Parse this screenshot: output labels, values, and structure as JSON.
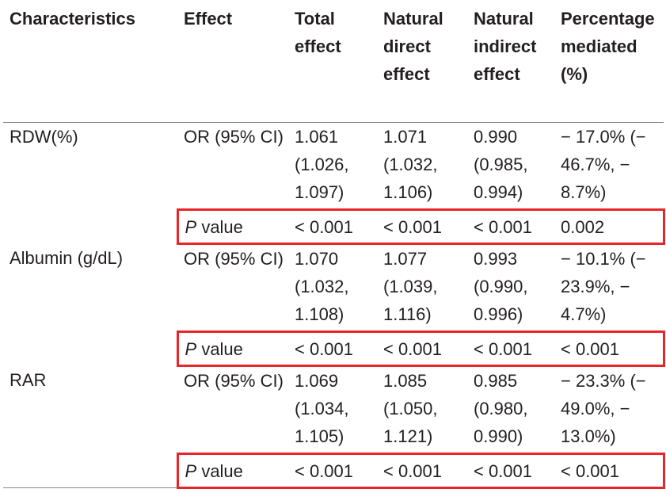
{
  "table": {
    "header": [
      "Characteristics",
      "Effect",
      "Total effect",
      "Natural direct effect",
      "Natural indirect effect",
      "Percent­age me­diated (%)"
    ],
    "rows": [
      {
        "label": "RDW(%)",
        "effect": "OR (95% CI)",
        "cells": [
          "1.061 (1.026, 1.097)",
          "1.071 (1.032, 1.106)",
          "0.990 (0.985, 0.994)",
          "− 17.0% (− 46.7%, − 8.7%)"
        ],
        "p_label": {
          "italic": "P",
          "text": "value"
        },
        "p_cells": [
          "< 0.001",
          "< 0.001",
          "< 0.001",
          "0.002"
        ]
      },
      {
        "label": "Albumin (g/dL)",
        "effect": "OR (95% CI)",
        "cells": [
          "1.070 (1.032, 1.108)",
          "1.077 (1.039, 1.116)",
          "0.993 (0.990, 0.996)",
          "− 10.1% (− 23.9%, − 4.7%)"
        ],
        "p_label": {
          "italic": "P",
          "text": "value"
        },
        "p_cells": [
          "< 0.001",
          "< 0.001",
          "< 0.001",
          "< 0.001"
        ]
      },
      {
        "label": "RAR",
        "effect": "OR (95% CI)",
        "cells": [
          "1.069 (1.034, 1.105)",
          "1.085 (1.050, 1.121)",
          "0.985 (0.980, 0.990)",
          "− 23.3% (− 49.0%, − 13.0%)"
        ],
        "p_label": {
          "italic": "P",
          "text": "value"
        },
        "p_cells": [
          "< 0.001",
          "< 0.001",
          "< 0.001",
          "< 0.001"
        ]
      }
    ]
  }
}
